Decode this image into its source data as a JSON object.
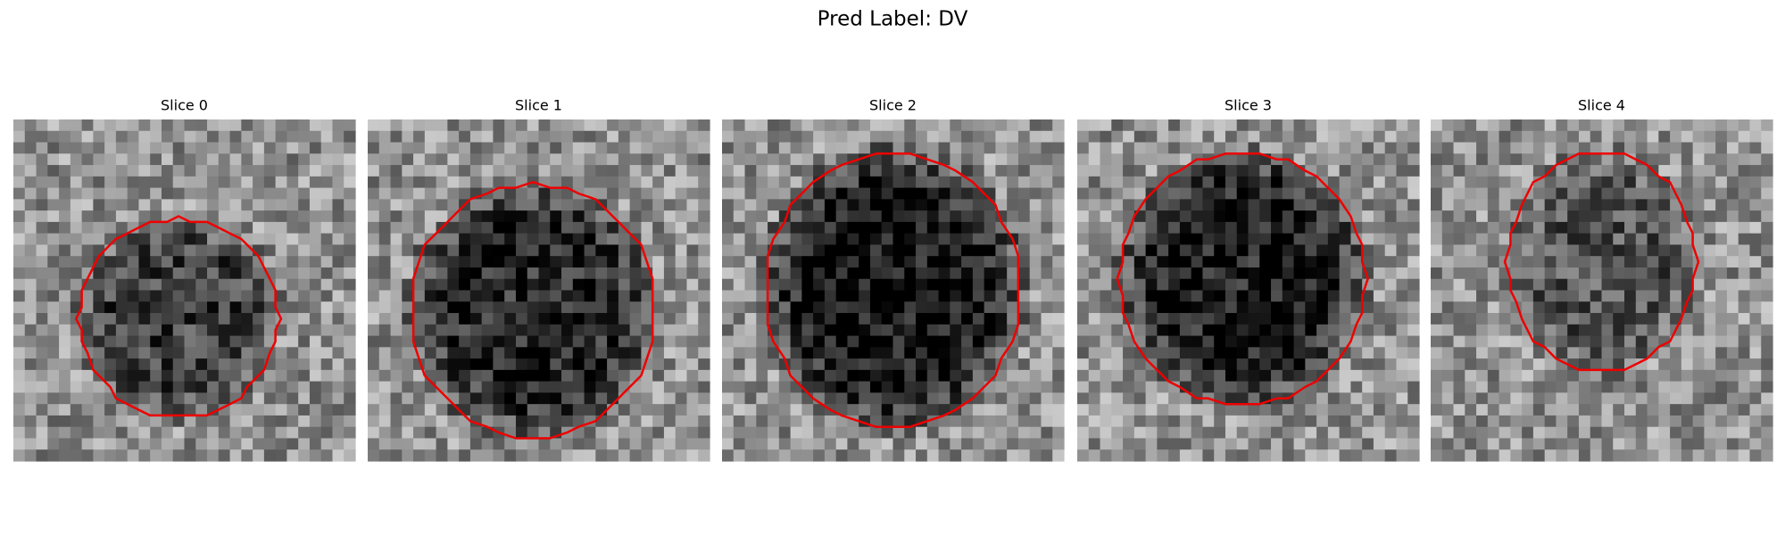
{
  "title": "Pred Label: DV",
  "panels": [
    {
      "title": "Slice 0"
    },
    {
      "title": "Slice 1"
    },
    {
      "title": "Slice 2"
    },
    {
      "title": "Slice 3"
    },
    {
      "title": "Slice 4"
    }
  ]
}
